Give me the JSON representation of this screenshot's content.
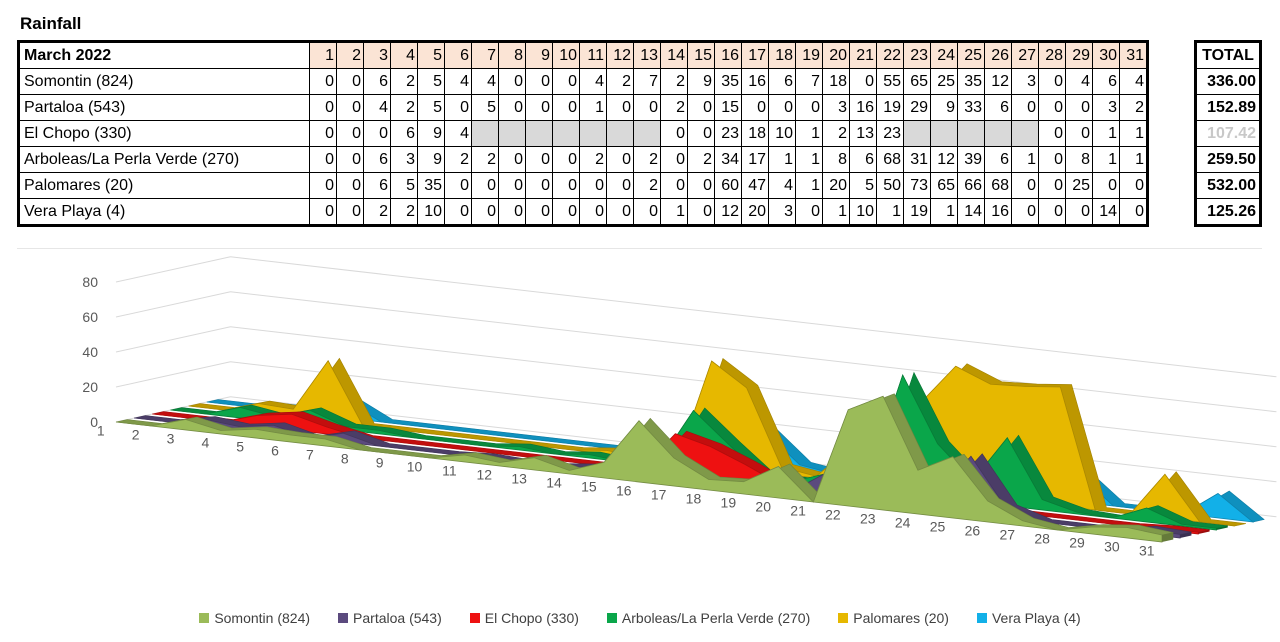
{
  "title": "Rainfall",
  "table": {
    "month": "March 2022",
    "total_label": "TOTAL",
    "days": [
      "1",
      "2",
      "3",
      "4",
      "5",
      "6",
      "7",
      "8",
      "9",
      "10",
      "11",
      "12",
      "13",
      "14",
      "15",
      "16",
      "17",
      "18",
      "19",
      "20",
      "21",
      "22",
      "23",
      "24",
      "25",
      "26",
      "27",
      "28",
      "29",
      "30",
      "31"
    ]
  },
  "chart_data": {
    "type": "area",
    "x": [
      1,
      2,
      3,
      4,
      5,
      6,
      7,
      8,
      9,
      10,
      11,
      12,
      13,
      14,
      15,
      16,
      17,
      18,
      19,
      20,
      21,
      22,
      23,
      24,
      25,
      26,
      27,
      28,
      29,
      30,
      31
    ],
    "y_ticks": [
      "0",
      "20",
      "40",
      "60",
      "80"
    ],
    "ylim": [
      0,
      80
    ],
    "legend_position": "bottom",
    "series": [
      {
        "name": "Somontin (824)",
        "color": "#9bbb59",
        "total": "336.00",
        "values": [
          0,
          0,
          6,
          2,
          5,
          4,
          4,
          0,
          0,
          0,
          4,
          2,
          7,
          2,
          9,
          35,
          16,
          6,
          7,
          18,
          0,
          55,
          65,
          25,
          35,
          12,
          3,
          0,
          4,
          6,
          4
        ]
      },
      {
        "name": "Partaloa (543)",
        "color": "#5b4a7e",
        "total": "152.89",
        "values": [
          0,
          0,
          4,
          2,
          5,
          0,
          5,
          0,
          0,
          0,
          1,
          0,
          0,
          2,
          0,
          15,
          0,
          0,
          0,
          3,
          16,
          19,
          29,
          9,
          33,
          6,
          0,
          0,
          0,
          3,
          2
        ]
      },
      {
        "name": "El Chopo (330)",
        "color": "#ee1111",
        "total": "107.42",
        "total_faded": true,
        "values": [
          0,
          0,
          0,
          6,
          9,
          4,
          null,
          null,
          null,
          null,
          null,
          null,
          null,
          0,
          0,
          23,
          18,
          10,
          1,
          2,
          13,
          23,
          null,
          null,
          null,
          null,
          null,
          0,
          0,
          1,
          1
        ]
      },
      {
        "name": "Arboleas/La Perla Verde (270)",
        "color": "#0aa64a",
        "total": "259.50",
        "values": [
          0,
          0,
          6,
          3,
          9,
          2,
          2,
          0,
          0,
          0,
          2,
          0,
          2,
          0,
          2,
          34,
          17,
          1,
          1,
          8,
          6,
          68,
          31,
          12,
          39,
          6,
          1,
          0,
          8,
          1,
          1
        ]
      },
      {
        "name": "Palomares (20)",
        "color": "#e6b800",
        "total": "532.00",
        "values": [
          0,
          0,
          6,
          5,
          35,
          0,
          0,
          0,
          0,
          0,
          0,
          0,
          2,
          0,
          0,
          60,
          47,
          4,
          1,
          20,
          5,
          50,
          73,
          65,
          66,
          68,
          0,
          0,
          25,
          0,
          0
        ]
      },
      {
        "name": "Vera Playa (4)",
        "color": "#12b0e8",
        "total": "125.26",
        "values": [
          0,
          0,
          2,
          2,
          10,
          0,
          0,
          0,
          0,
          0,
          0,
          0,
          0,
          1,
          0,
          12,
          20,
          3,
          0,
          1,
          10,
          1,
          19,
          1,
          14,
          16,
          0,
          0,
          0,
          14,
          0
        ]
      }
    ]
  }
}
